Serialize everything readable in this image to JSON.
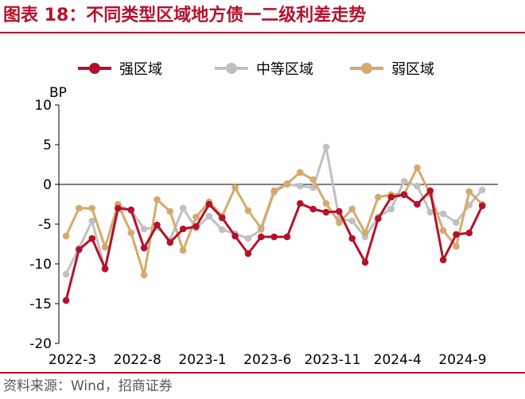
{
  "header": {
    "title": "图表 18：不同类型区域地方债一二级利差走势"
  },
  "footer": {
    "source": "资料来源：Wind，招商证券"
  },
  "chart_data": {
    "type": "line",
    "title": "",
    "ylabel": "BP",
    "xlabel": "",
    "ylim": [
      -20,
      10
    ],
    "yticks": [
      10,
      5,
      0,
      -5,
      -10,
      -15,
      -20
    ],
    "x_tick_labels": [
      "2022-3",
      "2022-8",
      "2023-1",
      "2023-6",
      "2023-11",
      "2024-4",
      "2024-9"
    ],
    "x_tick_indices": [
      0,
      5,
      10,
      15,
      20,
      25,
      30
    ],
    "legend_position": "top",
    "grid": false,
    "x_count": 33,
    "series": [
      {
        "name": "强区域",
        "color": "#b5112c",
        "values": [
          -14.6,
          -8.2,
          -6.8,
          -10.6,
          -3.0,
          -3.2,
          -8.0,
          -5.1,
          -7.3,
          -5.6,
          -5.3,
          -2.5,
          -4.2,
          -6.5,
          -8.7,
          -6.6,
          -6.6,
          -6.6,
          -2.4,
          -3.1,
          -3.5,
          -3.4,
          -6.8,
          -9.8,
          -4.3,
          -1.6,
          -1.3,
          -2.5,
          -0.8,
          -9.5,
          -6.3,
          -6.1,
          -2.7
        ]
      },
      {
        "name": "中等区域",
        "color": "#c0c0c0",
        "values": [
          -11.3,
          -8.0,
          -4.6,
          -10.7,
          -2.6,
          -3.3,
          -5.6,
          -5.4,
          -7.0,
          -3.0,
          -5.5,
          -4.0,
          -5.7,
          -6.2,
          -6.8,
          -5.7,
          -1.0,
          0.0,
          -0.2,
          -0.4,
          4.7,
          -4.3,
          -4.6,
          -6.6,
          -4.1,
          -3.1,
          0.4,
          -0.2,
          -3.5,
          -3.7,
          -4.8,
          -2.6,
          -0.7
        ]
      },
      {
        "name": "弱区域",
        "color": "#d4aa6c",
        "values": [
          -6.5,
          -3.0,
          -3.0,
          -7.9,
          -2.5,
          -6.1,
          -11.4,
          -1.9,
          -3.4,
          -8.3,
          -4.1,
          -2.2,
          -4.0,
          -0.4,
          -3.3,
          -5.5,
          -0.8,
          0.1,
          1.5,
          0.6,
          -2.4,
          -4.8,
          -3.1,
          -6.1,
          -1.6,
          -1.3,
          -1.2,
          2.1,
          -1.2,
          -5.8,
          -7.8,
          -0.9,
          -2.5
        ]
      }
    ]
  }
}
